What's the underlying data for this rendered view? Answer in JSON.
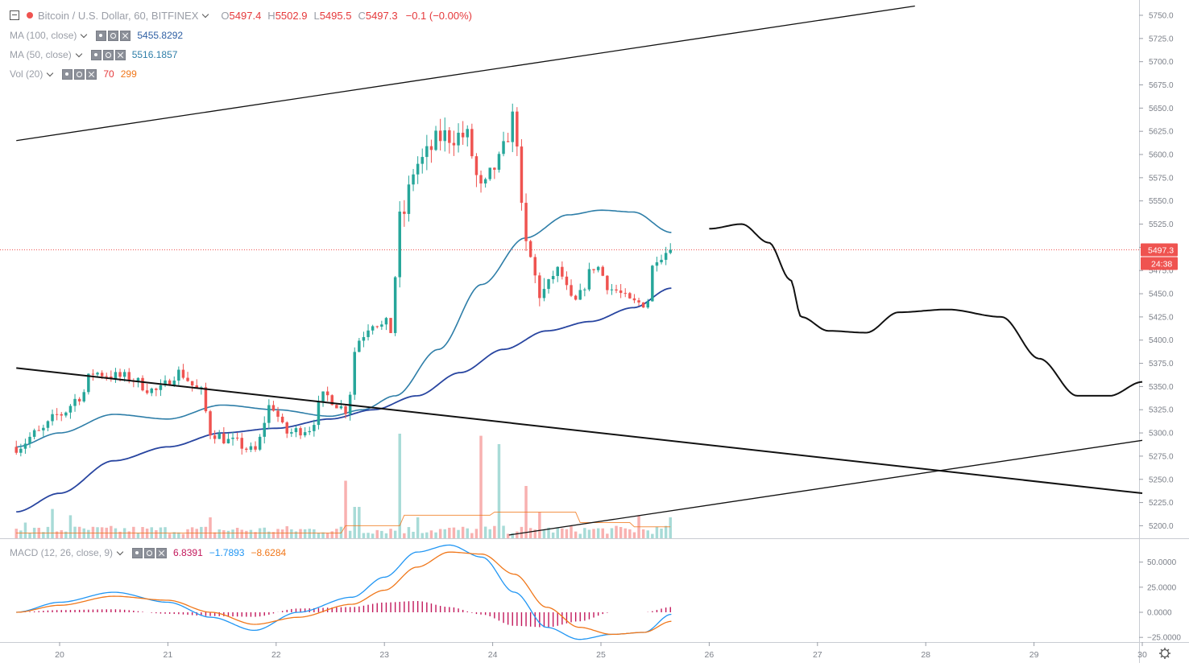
{
  "header": {
    "symbol": "Bitcoin / U.S. Dollar, 60, BITFINEX",
    "ohlc": [
      {
        "key": "O",
        "value": "5497.4"
      },
      {
        "key": "H",
        "value": "5502.9"
      },
      {
        "key": "L",
        "value": "5495.5"
      },
      {
        "key": "C",
        "value": "5497.3"
      }
    ],
    "change": "−0.1 (−0.00%)"
  },
  "indicators": {
    "ma100": {
      "label": "MA (100, close)",
      "value": "5455.8292"
    },
    "ma50": {
      "label": "MA (50, close)",
      "value": "5516.1857"
    },
    "vol": {
      "label": "Vol (20)",
      "value1": "70",
      "value2": "299"
    },
    "macd": {
      "label": "MACD (12, 26, close, 9)",
      "hist": "6.8391",
      "macd": "−1.7893",
      "signal": "−8.6284"
    }
  },
  "price_axis": {
    "ticks": [
      "5750.0",
      "5725.0",
      "5700.0",
      "5675.0",
      "5650.0",
      "5625.0",
      "5600.0",
      "5575.0",
      "5550.0",
      "5525.0",
      "5500.0",
      "5475.0",
      "5450.0",
      "5425.0",
      "5400.0",
      "5375.0",
      "5350.0",
      "5325.0",
      "5300.0",
      "5275.0",
      "5250.0",
      "5225.0",
      "5200.0"
    ],
    "last_price": "5497.3",
    "countdown": "24:38"
  },
  "macd_axis": {
    "ticks": [
      "50.0000",
      "25.0000",
      "0.0000",
      "−25.0000"
    ]
  },
  "time_axis": {
    "ticks": [
      "20",
      "21",
      "22",
      "23",
      "24",
      "25",
      "26",
      "27",
      "28",
      "29",
      "30"
    ]
  },
  "colors": {
    "up": "#26a69a",
    "down": "#ef5350",
    "ma50": "#2e7ea8",
    "ma100": "#2845a0",
    "macd": "#2196f3",
    "signal": "#f0771a",
    "histogram": "#c2185b",
    "vol_ma": "#f0771a"
  },
  "chart_data": {
    "type": "candlestick",
    "timeframe": "60",
    "x_ticks": [
      "20",
      "21",
      "22",
      "23",
      "24",
      "25",
      "26",
      "27",
      "28",
      "29",
      "30"
    ],
    "y_range": [
      5190,
      5760
    ],
    "anchors": [
      {
        "day": 19.6,
        "price": 5285
      },
      {
        "day": 19.8,
        "price": 5300
      },
      {
        "day": 20.0,
        "price": 5320
      },
      {
        "day": 20.2,
        "price": 5340
      },
      {
        "day": 20.3,
        "price": 5365
      },
      {
        "day": 20.6,
        "price": 5360
      },
      {
        "day": 20.9,
        "price": 5345
      },
      {
        "day": 21.1,
        "price": 5365
      },
      {
        "day": 21.3,
        "price": 5345
      },
      {
        "day": 21.4,
        "price": 5300
      },
      {
        "day": 21.6,
        "price": 5290
      },
      {
        "day": 21.8,
        "price": 5280
      },
      {
        "day": 21.95,
        "price": 5330
      },
      {
        "day": 22.1,
        "price": 5300
      },
      {
        "day": 22.3,
        "price": 5305
      },
      {
        "day": 22.45,
        "price": 5340
      },
      {
        "day": 22.65,
        "price": 5325
      },
      {
        "day": 22.75,
        "price": 5400
      },
      {
        "day": 22.9,
        "price": 5420
      },
      {
        "day": 23.05,
        "price": 5410
      },
      {
        "day": 23.15,
        "price": 5530
      },
      {
        "day": 23.3,
        "price": 5590
      },
      {
        "day": 23.55,
        "price": 5620
      },
      {
        "day": 23.75,
        "price": 5620
      },
      {
        "day": 23.9,
        "price": 5560
      },
      {
        "day": 24.05,
        "price": 5590
      },
      {
        "day": 24.2,
        "price": 5640
      },
      {
        "day": 24.3,
        "price": 5500
      },
      {
        "day": 24.45,
        "price": 5450
      },
      {
        "day": 24.6,
        "price": 5475
      },
      {
        "day": 24.75,
        "price": 5440
      },
      {
        "day": 24.95,
        "price": 5480
      },
      {
        "day": 25.1,
        "price": 5455
      },
      {
        "day": 25.3,
        "price": 5440
      },
      {
        "day": 25.42,
        "price": 5440
      },
      {
        "day": 25.5,
        "price": 5490
      },
      {
        "day": 25.65,
        "price": 5497
      }
    ],
    "ma50": [
      {
        "day": 19.6,
        "price": 5285
      },
      {
        "day": 20.0,
        "price": 5300
      },
      {
        "day": 20.5,
        "price": 5320
      },
      {
        "day": 21.0,
        "price": 5315
      },
      {
        "day": 21.5,
        "price": 5330
      },
      {
        "day": 22.0,
        "price": 5325
      },
      {
        "day": 22.5,
        "price": 5318
      },
      {
        "day": 22.8,
        "price": 5325
      },
      {
        "day": 23.1,
        "price": 5340
      },
      {
        "day": 23.5,
        "price": 5390
      },
      {
        "day": 23.9,
        "price": 5460
      },
      {
        "day": 24.3,
        "price": 5510
      },
      {
        "day": 24.7,
        "price": 5535
      },
      {
        "day": 25.0,
        "price": 5540
      },
      {
        "day": 25.3,
        "price": 5538
      },
      {
        "day": 25.65,
        "price": 5516
      }
    ],
    "ma100": [
      {
        "day": 19.6,
        "price": 5215
      },
      {
        "day": 20.0,
        "price": 5235
      },
      {
        "day": 20.5,
        "price": 5270
      },
      {
        "day": 21.0,
        "price": 5285
      },
      {
        "day": 21.5,
        "price": 5300
      },
      {
        "day": 22.0,
        "price": 5305
      },
      {
        "day": 22.5,
        "price": 5315
      },
      {
        "day": 22.9,
        "price": 5325
      },
      {
        "day": 23.3,
        "price": 5340
      },
      {
        "day": 23.7,
        "price": 5365
      },
      {
        "day": 24.1,
        "price": 5390
      },
      {
        "day": 24.5,
        "price": 5410
      },
      {
        "day": 24.9,
        "price": 5420
      },
      {
        "day": 25.3,
        "price": 5435
      },
      {
        "day": 25.65,
        "price": 5456
      }
    ],
    "drawings": [
      {
        "name": "upper-trendline",
        "from": {
          "day": 19.6,
          "price": 5615
        },
        "to": {
          "day": 27.9,
          "price": 5760
        }
      },
      {
        "name": "descending-trendline",
        "from": {
          "day": 19.6,
          "price": 5370
        },
        "to": {
          "day": 30.0,
          "price": 5235
        }
      },
      {
        "name": "ascending-trendline",
        "from": {
          "day": 24.15,
          "price": 5190
        },
        "to": {
          "day": 30.0,
          "price": 5292
        }
      }
    ],
    "projection": [
      {
        "day": 26.0,
        "price": 5520
      },
      {
        "day": 26.3,
        "price": 5525
      },
      {
        "day": 26.55,
        "price": 5505
      },
      {
        "day": 26.75,
        "price": 5465
      },
      {
        "day": 26.85,
        "price": 5425
      },
      {
        "day": 27.1,
        "price": 5410
      },
      {
        "day": 27.45,
        "price": 5408
      },
      {
        "day": 27.75,
        "price": 5430
      },
      {
        "day": 28.2,
        "price": 5433
      },
      {
        "day": 28.7,
        "price": 5425
      },
      {
        "day": 29.05,
        "price": 5380
      },
      {
        "day": 29.4,
        "price": 5340
      },
      {
        "day": 29.7,
        "price": 5340
      },
      {
        "day": 30.0,
        "price": 5355
      }
    ],
    "macd_range": [
      -32,
      72
    ],
    "macd_line": [
      {
        "day": 19.6,
        "price": 0
      },
      {
        "day": 20.0,
        "price": 10
      },
      {
        "day": 20.5,
        "price": 20
      },
      {
        "day": 21.0,
        "price": 10
      },
      {
        "day": 21.4,
        "price": -5
      },
      {
        "day": 21.8,
        "price": -18
      },
      {
        "day": 22.2,
        "price": 0
      },
      {
        "day": 22.7,
        "price": 15
      },
      {
        "day": 23.0,
        "price": 35
      },
      {
        "day": 23.3,
        "price": 60
      },
      {
        "day": 23.6,
        "price": 67
      },
      {
        "day": 23.9,
        "price": 55
      },
      {
        "day": 24.2,
        "price": 20
      },
      {
        "day": 24.5,
        "price": -15
      },
      {
        "day": 24.8,
        "price": -27
      },
      {
        "day": 25.1,
        "price": -22
      },
      {
        "day": 25.4,
        "price": -20
      },
      {
        "day": 25.65,
        "price": -2
      }
    ],
    "signal_line": [
      {
        "day": 19.6,
        "price": 0
      },
      {
        "day": 20.0,
        "price": 7
      },
      {
        "day": 20.5,
        "price": 16
      },
      {
        "day": 21.0,
        "price": 12
      },
      {
        "day": 21.4,
        "price": 0
      },
      {
        "day": 21.8,
        "price": -12
      },
      {
        "day": 22.2,
        "price": -5
      },
      {
        "day": 22.7,
        "price": 8
      },
      {
        "day": 23.0,
        "price": 22
      },
      {
        "day": 23.3,
        "price": 45
      },
      {
        "day": 23.6,
        "price": 60
      },
      {
        "day": 23.9,
        "price": 58
      },
      {
        "day": 24.2,
        "price": 38
      },
      {
        "day": 24.5,
        "price": 5
      },
      {
        "day": 24.8,
        "price": -15
      },
      {
        "day": 25.1,
        "price": -22
      },
      {
        "day": 25.4,
        "price": -20
      },
      {
        "day": 25.65,
        "price": -9
      }
    ],
    "volume_peaks": [
      {
        "day": 19.7,
        "value": 0.15
      },
      {
        "day": 19.95,
        "value": 0.28
      },
      {
        "day": 20.1,
        "value": 0.22
      },
      {
        "day": 21.4,
        "value": 0.2
      },
      {
        "day": 22.65,
        "value": 0.55
      },
      {
        "day": 22.75,
        "value": 0.3
      },
      {
        "day": 23.15,
        "value": 1.0
      },
      {
        "day": 23.3,
        "value": 0.2
      },
      {
        "day": 23.9,
        "value": 0.98
      },
      {
        "day": 24.05,
        "value": 0.9
      },
      {
        "day": 24.3,
        "value": 0.5
      },
      {
        "day": 24.45,
        "value": 0.25
      },
      {
        "day": 25.35,
        "value": 0.22
      },
      {
        "day": 25.65,
        "value": 0.2
      }
    ]
  }
}
